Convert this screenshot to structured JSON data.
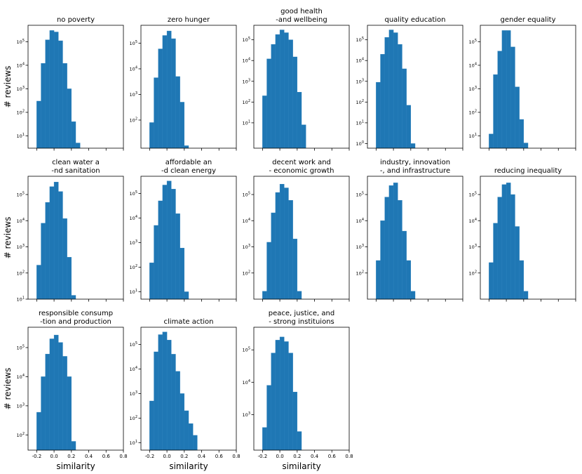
{
  "figure": {
    "ylabel": "# reviews",
    "xlabel": "similarity"
  },
  "chart_data": [
    {
      "type": "bar",
      "title": "no poverty",
      "yscale": "log",
      "ylim": [
        3,
        500000
      ],
      "yticks": [
        10,
        100,
        1000,
        10000,
        100000
      ],
      "xlim": [
        -0.3,
        0.8
      ],
      "bin_edges": [
        -0.2,
        -0.15,
        -0.1,
        -0.05,
        0,
        0.05,
        0.1,
        0.15,
        0.2,
        0.25,
        0.3,
        0.35,
        0.4
      ],
      "values": [
        300,
        12000,
        120000,
        300000,
        260000,
        110000,
        12000,
        1000,
        40,
        5,
        0,
        0
      ]
    },
    {
      "type": "bar",
      "title": "zero hunger",
      "yscale": "log",
      "ylim": [
        8,
        500000
      ],
      "yticks": [
        100,
        1000,
        10000,
        100000
      ],
      "xlim": [
        -0.3,
        0.8
      ],
      "bin_edges": [
        -0.2,
        -0.15,
        -0.1,
        -0.05,
        0,
        0.05,
        0.1,
        0.15,
        0.2,
        0.25,
        0.3,
        0.35,
        0.4
      ],
      "values": [
        80,
        4500,
        60000,
        200000,
        300000,
        150000,
        5000,
        500,
        10,
        0,
        0,
        0
      ]
    },
    {
      "type": "bar",
      "title": "good health\n-and wellbeing",
      "yscale": "log",
      "ylim": [
        0.6,
        500000
      ],
      "yticks": [
        10,
        100,
        1000,
        10000,
        100000
      ],
      "xlim": [
        -0.3,
        0.8
      ],
      "bin_edges": [
        -0.2,
        -0.15,
        -0.1,
        -0.05,
        0,
        0.05,
        0.1,
        0.15,
        0.2,
        0.25,
        0.3,
        0.35,
        0.4
      ],
      "values": [
        200,
        12000,
        60000,
        180000,
        300000,
        220000,
        100000,
        15000,
        300,
        8,
        0,
        0
      ]
    },
    {
      "type": "bar",
      "title": "quality education",
      "yscale": "log",
      "ylim": [
        0.6,
        500000
      ],
      "yticks": [
        1,
        10,
        100,
        1000,
        10000,
        100000
      ],
      "xlim": [
        -0.3,
        0.8
      ],
      "bin_edges": [
        -0.2,
        -0.15,
        -0.1,
        -0.05,
        0,
        0.05,
        0.1,
        0.15,
        0.2,
        0.25,
        0.3,
        0.35,
        0.4
      ],
      "values": [
        900,
        20000,
        130000,
        300000,
        220000,
        60000,
        4000,
        70,
        1,
        0,
        0,
        0
      ]
    },
    {
      "type": "bar",
      "title": "gender equality",
      "yscale": "log",
      "ylim": [
        3,
        500000
      ],
      "yticks": [
        10,
        100,
        1000,
        10000,
        100000
      ],
      "xlim": [
        -0.3,
        0.8
      ],
      "bin_edges": [
        -0.2,
        -0.15,
        -0.1,
        -0.05,
        0,
        0.05,
        0.1,
        0.15,
        0.2,
        0.25,
        0.3,
        0.35,
        0.4
      ],
      "values": [
        12,
        4000,
        40000,
        300000,
        300000,
        60000,
        1200,
        50,
        5,
        0,
        0,
        0
      ]
    },
    {
      "type": "bar",
      "title": "clean water a\n-nd sanitation",
      "yscale": "log",
      "ylim": [
        10,
        500000
      ],
      "yticks": [
        10,
        100,
        1000,
        10000,
        100000
      ],
      "xlim": [
        -0.3,
        0.8
      ],
      "bin_edges": [
        -0.2,
        -0.15,
        -0.1,
        -0.05,
        0,
        0.05,
        0.1,
        0.15,
        0.2,
        0.25,
        0.3,
        0.35,
        0.4
      ],
      "values": [
        200,
        8000,
        50000,
        200000,
        300000,
        130000,
        12000,
        400,
        14,
        0,
        0,
        0
      ]
    },
    {
      "type": "bar",
      "title": "affordable an\n-d clean energy",
      "yscale": "log",
      "ylim": [
        5,
        500000
      ],
      "yticks": [
        10,
        100,
        1000,
        10000,
        100000
      ],
      "xlim": [
        -0.3,
        0.8
      ],
      "bin_edges": [
        -0.2,
        -0.15,
        -0.1,
        -0.05,
        0,
        0.05,
        0.1,
        0.15,
        0.2,
        0.25,
        0.3,
        0.35,
        0.4
      ],
      "values": [
        150,
        5000,
        50000,
        220000,
        320000,
        150000,
        15000,
        600,
        10,
        0,
        0,
        0
      ]
    },
    {
      "type": "bar",
      "title": "decent work and\n- economic growth",
      "yscale": "log",
      "ylim": [
        10,
        500000
      ],
      "yticks": [
        100,
        1000,
        10000,
        100000
      ],
      "xlim": [
        -0.3,
        0.8
      ],
      "bin_edges": [
        -0.2,
        -0.15,
        -0.1,
        -0.05,
        0,
        0.05,
        0.1,
        0.15,
        0.2,
        0.25,
        0.3,
        0.35,
        0.4
      ],
      "values": [
        20,
        1500,
        20000,
        120000,
        250000,
        180000,
        60000,
        2000,
        20,
        0,
        0,
        0
      ]
    },
    {
      "type": "bar",
      "title": "industry, innovation\n-, and infrastructure",
      "yscale": "log",
      "ylim": [
        10,
        500000
      ],
      "yticks": [
        100,
        1000,
        10000,
        100000
      ],
      "xlim": [
        -0.3,
        0.8
      ],
      "bin_edges": [
        -0.2,
        -0.15,
        -0.1,
        -0.05,
        0,
        0.05,
        0.1,
        0.15,
        0.2,
        0.25,
        0.3,
        0.35,
        0.4
      ],
      "values": [
        300,
        10000,
        80000,
        220000,
        280000,
        60000,
        4000,
        300,
        20,
        0,
        0,
        0
      ]
    },
    {
      "type": "bar",
      "title": "reducing inequality",
      "yscale": "log",
      "ylim": [
        10,
        500000
      ],
      "yticks": [
        100,
        1000,
        10000,
        100000
      ],
      "xlim": [
        -0.3,
        0.8
      ],
      "bin_edges": [
        -0.2,
        -0.15,
        -0.1,
        -0.05,
        0,
        0.05,
        0.1,
        0.15,
        0.2,
        0.25,
        0.3,
        0.35,
        0.4
      ],
      "values": [
        250,
        8000,
        80000,
        240000,
        280000,
        100000,
        6000,
        300,
        20,
        0,
        0,
        0
      ]
    },
    {
      "type": "bar",
      "title": "responsible consump\n-tion and production",
      "yscale": "log",
      "ylim": [
        30,
        500000
      ],
      "yticks": [
        100,
        1000,
        10000,
        100000
      ],
      "xlim": [
        -0.3,
        0.8
      ],
      "bin_edges": [
        -0.2,
        -0.15,
        -0.1,
        -0.05,
        0,
        0.05,
        0.1,
        0.15,
        0.2,
        0.25,
        0.3,
        0.35,
        0.4
      ],
      "values": [
        600,
        10000,
        60000,
        200000,
        270000,
        150000,
        50000,
        10000,
        60,
        0,
        0,
        0
      ]
    },
    {
      "type": "bar",
      "title": "climate action",
      "yscale": "log",
      "ylim": [
        5,
        500000
      ],
      "yticks": [
        10,
        100,
        1000,
        10000,
        100000
      ],
      "xlim": [
        -0.3,
        0.8
      ],
      "bin_edges": [
        -0.2,
        -0.15,
        -0.1,
        -0.05,
        0,
        0.05,
        0.1,
        0.15,
        0.2,
        0.25,
        0.3,
        0.35,
        0.4
      ],
      "values": [
        500,
        50000,
        250000,
        320000,
        150000,
        40000,
        8000,
        1000,
        200,
        60,
        20,
        0
      ]
    },
    {
      "type": "bar",
      "title": "peace, justice, and\n- strong instituions",
      "yscale": "log",
      "ylim": [
        80,
        500000
      ],
      "yticks": [
        1000,
        10000,
        100000
      ],
      "xlim": [
        -0.3,
        0.8
      ],
      "bin_edges": [
        -0.2,
        -0.15,
        -0.1,
        -0.05,
        0,
        0.05,
        0.1,
        0.15,
        0.2,
        0.25,
        0.3,
        0.35,
        0.4
      ],
      "values": [
        400,
        8000,
        80000,
        200000,
        250000,
        180000,
        80000,
        5000,
        300,
        0,
        0,
        0
      ]
    }
  ],
  "xtick_labels": [
    "-0.2",
    "0.0",
    "0.2",
    "0.4",
    "0.6",
    "0.8"
  ],
  "xtick_values": [
    -0.2,
    0,
    0.2,
    0.4,
    0.6,
    0.8
  ],
  "colors": {
    "bar": "#1f77b4",
    "bar_edge": "#2a80bd",
    "axis": "#000000"
  }
}
